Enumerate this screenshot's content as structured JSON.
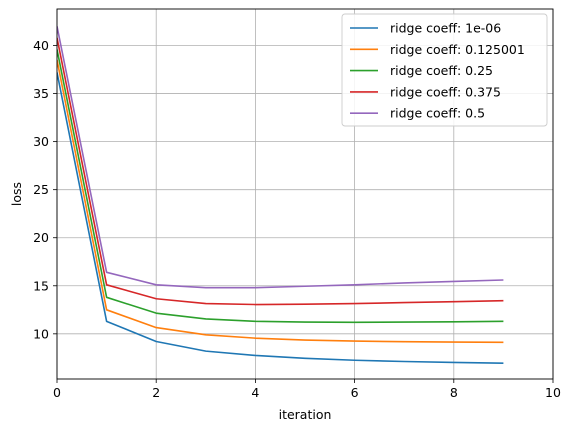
{
  "chart_data": {
    "type": "line",
    "title": "",
    "xlabel": "iteration",
    "ylabel": "loss",
    "xlim": [
      0,
      10
    ],
    "ylim": [
      5.3,
      43.8
    ],
    "xticks": [
      0,
      2,
      4,
      6,
      8,
      10
    ],
    "yticks": [
      10,
      15,
      20,
      25,
      30,
      35,
      40
    ],
    "grid": true,
    "legend_position": "top-right",
    "x": [
      0,
      1,
      2,
      3,
      4,
      5,
      6,
      7,
      8,
      9
    ],
    "series": [
      {
        "name": "ridge coeff: 1e-06",
        "color": "#1f77b4",
        "values": [
          37.2,
          11.3,
          9.2,
          8.2,
          7.75,
          7.45,
          7.25,
          7.12,
          7.02,
          6.95
        ]
      },
      {
        "name": "ridge coeff: 0.125001",
        "color": "#ff7f0e",
        "values": [
          38.5,
          12.5,
          10.65,
          9.9,
          9.55,
          9.35,
          9.25,
          9.18,
          9.14,
          9.12
        ]
      },
      {
        "name": "ridge coeff: 0.25",
        "color": "#2ca02c",
        "values": [
          39.6,
          13.8,
          12.15,
          11.55,
          11.3,
          11.22,
          11.2,
          11.22,
          11.25,
          11.3
        ]
      },
      {
        "name": "ridge coeff: 0.375",
        "color": "#d62728",
        "values": [
          40.8,
          15.1,
          13.65,
          13.15,
          13.05,
          13.08,
          13.15,
          13.25,
          13.35,
          13.45
        ]
      },
      {
        "name": "ridge coeff: 0.5",
        "color": "#9467bd",
        "values": [
          42.0,
          16.4,
          15.1,
          14.8,
          14.8,
          14.95,
          15.1,
          15.3,
          15.45,
          15.6
        ]
      }
    ]
  }
}
